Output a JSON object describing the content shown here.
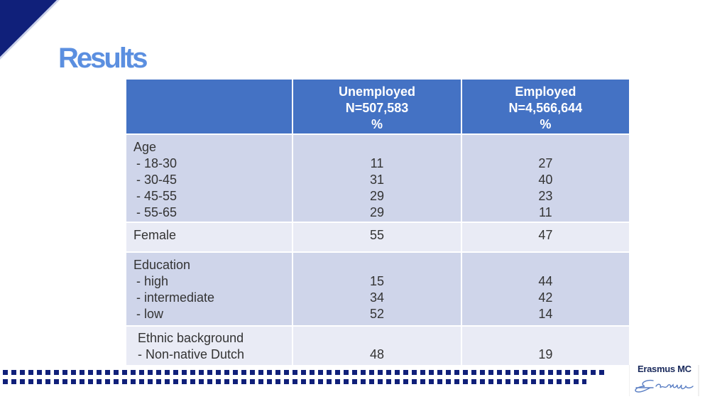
{
  "title": "Results",
  "table": {
    "headers": [
      {
        "line1": "Unemployed",
        "line2": "N=507,583",
        "line3": "%"
      },
      {
        "line1": "Employed",
        "line2": "N=4,566,644",
        "line3": "%"
      }
    ],
    "age": {
      "label": "Age",
      "rows": [
        {
          "label": "- 18-30",
          "unemployed": "11",
          "employed": "27"
        },
        {
          "label": "- 30-45",
          "unemployed": "31",
          "employed": "40"
        },
        {
          "label": "- 45-55",
          "unemployed": "29",
          "employed": "23"
        },
        {
          "label": "- 55-65",
          "unemployed": "29",
          "employed": "11"
        }
      ]
    },
    "female": {
      "label": "Female",
      "unemployed": "55",
      "employed": "47"
    },
    "education": {
      "label": "Education",
      "rows": [
        {
          "label": "- high",
          "unemployed": "15",
          "employed": "44"
        },
        {
          "label": "- intermediate",
          "unemployed": "34",
          "employed": "42"
        },
        {
          "label": "- low",
          "unemployed": "52",
          "employed": "14"
        }
      ]
    },
    "ethnic": {
      "label": "Ethnic background",
      "row": {
        "label": "- Non-native Dutch",
        "unemployed": "48",
        "employed": "19"
      }
    }
  },
  "logo": {
    "name": "Erasmus MC",
    "signature": "Erasmus"
  },
  "colors": {
    "header": "#4472c4",
    "row_dark": "#cfd5ea",
    "row_light": "#e9ebf5",
    "navy": "#10207a",
    "title": "#5b8fe0"
  }
}
